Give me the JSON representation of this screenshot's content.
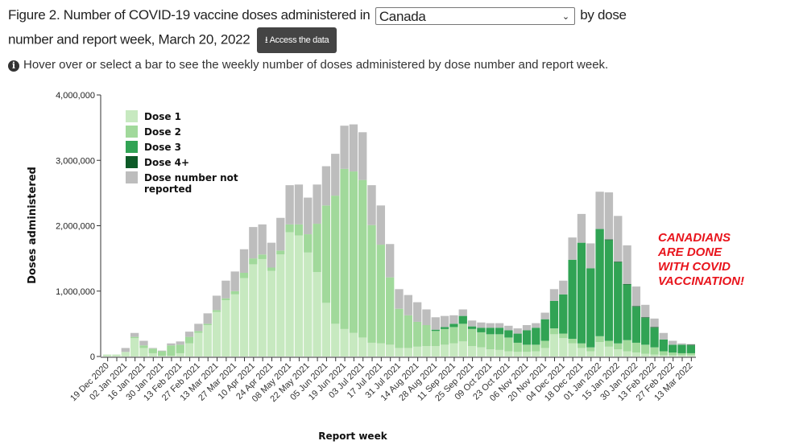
{
  "header": {
    "title_pre": "Figure 2. Number of COVID-19 vaccine doses administered in",
    "region_select": "Canada",
    "title_post": "by dose",
    "title_line2": "number and report week, March 20, 2022",
    "access_button": "Access the data"
  },
  "info_text": "Hover over or select a bar to see the weekly number of doses administered by dose number and report week.",
  "annotation": [
    "CANADIANS",
    "ARE DONE",
    "WITH COVID",
    "VACCINATION!"
  ],
  "chart_data": {
    "type": "bar",
    "stacked": true,
    "xlabel": "Report week",
    "ylabel": "Doses administered",
    "ylim": [
      0,
      4000000
    ],
    "yticks": [
      "0",
      "1,000,000",
      "2,000,000",
      "3,000,000",
      "4,000,000"
    ],
    "tick_labels": [
      "19 Dec 2020",
      "02 Jan 2021",
      "16 Jan 2021",
      "30 Jan 2021",
      "13 Feb 2021",
      "27 Feb 2021",
      "13 Mar 2021",
      "27 Mar 2021",
      "10 Apr 2021",
      "24 Apr 2021",
      "08 May 2021",
      "22 May 2021",
      "05 Jun 2021",
      "19 Jun 2021",
      "03 Jul 2021",
      "17 Jul 2021",
      "31 Jul 2021",
      "14 Aug 2021",
      "28 Aug 2021",
      "11 Sep 2021",
      "25 Sep 2021",
      "09 Oct 2021",
      "23 Oct 2021",
      "06 Nov 2021",
      "20 Nov 2021",
      "04 Dec 2021",
      "18 Dec 2021",
      "01 Jan 2022",
      "15 Jan 2022",
      "30 Jan 2022",
      "13 Feb 2022",
      "27 Feb 2022",
      "13 Mar 2022"
    ],
    "legend": [
      "Dose 1",
      "Dose 2",
      "Dose 3",
      "Dose 4+",
      "Dose number not reported"
    ],
    "legend_position": "top-left",
    "colors": [
      "#c7e9c0",
      "#a1d99b",
      "#31a354",
      "#0d5a27",
      "#bdbdbd"
    ],
    "series_units": "millions of doses",
    "series": [
      {
        "name": "Dose 1",
        "values": [
          0.03,
          0.03,
          0.07,
          0.28,
          0.13,
          0.05,
          0.01,
          0.01,
          0.05,
          0.2,
          0.36,
          0.48,
          0.68,
          0.86,
          0.95,
          1.2,
          1.41,
          1.49,
          1.31,
          1.56,
          1.9,
          1.85,
          1.59,
          1.29,
          0.82,
          0.5,
          0.42,
          0.36,
          0.29,
          0.21,
          0.2,
          0.18,
          0.13,
          0.13,
          0.15,
          0.16,
          0.16,
          0.18,
          0.2,
          0.23,
          0.16,
          0.14,
          0.11,
          0.1,
          0.08,
          0.07,
          0.07,
          0.08,
          0.13,
          0.34,
          0.28,
          0.2,
          0.13,
          0.08,
          0.22,
          0.15,
          0.11,
          0.08,
          0.06,
          0.04,
          0.03,
          0.02,
          0.02,
          0.02,
          0.02
        ]
      },
      {
        "name": "Dose 2",
        "values": [
          0,
          0,
          0,
          0.02,
          0.04,
          0.07,
          0.07,
          0.16,
          0.13,
          0.1,
          0.03,
          0.02,
          0.03,
          0.03,
          0.05,
          0.08,
          0.09,
          0.07,
          0.05,
          0.06,
          0.12,
          0.17,
          0.28,
          0.74,
          1.49,
          1.96,
          2.45,
          2.47,
          2.41,
          1.8,
          1.51,
          1.03,
          0.6,
          0.5,
          0.38,
          0.32,
          0.23,
          0.24,
          0.25,
          0.27,
          0.26,
          0.23,
          0.23,
          0.24,
          0.21,
          0.14,
          0.11,
          0.1,
          0.11,
          0.09,
          0.07,
          0.07,
          0.07,
          0.06,
          0.09,
          0.09,
          0.09,
          0.17,
          0.15,
          0.14,
          0.11,
          0.06,
          0.04,
          0.03,
          0.03
        ]
      },
      {
        "name": "Dose 3",
        "values": [
          0,
          0,
          0,
          0,
          0,
          0,
          0,
          0,
          0,
          0,
          0,
          0,
          0,
          0,
          0,
          0,
          0,
          0,
          0,
          0,
          0,
          0,
          0,
          0,
          0,
          0,
          0,
          0,
          0,
          0,
          0,
          0,
          0,
          0,
          0,
          0,
          0.02,
          0.03,
          0.05,
          0.12,
          0.04,
          0.07,
          0.1,
          0.1,
          0.11,
          0.14,
          0.22,
          0.26,
          0.33,
          0.42,
          0.6,
          1.21,
          1.54,
          1.21,
          1.64,
          1.54,
          1.24,
          0.85,
          0.55,
          0.41,
          0.3,
          0.18,
          0.12,
          0.13,
          0.12
        ]
      },
      {
        "name": "Dose 4+",
        "values": [
          0,
          0,
          0,
          0,
          0,
          0,
          0,
          0,
          0,
          0,
          0,
          0,
          0,
          0,
          0,
          0,
          0,
          0,
          0,
          0,
          0,
          0,
          0,
          0,
          0,
          0,
          0,
          0,
          0,
          0,
          0,
          0,
          0,
          0,
          0,
          0,
          0,
          0,
          0,
          0,
          0,
          0,
          0,
          0,
          0,
          0,
          0,
          0,
          0,
          0,
          0,
          0,
          0,
          0,
          0,
          0.01,
          0.01,
          0.01,
          0.01,
          0.01,
          0.01,
          0,
          0,
          0,
          0.01
        ]
      },
      {
        "name": "Dose number not reported",
        "values": [
          0,
          0,
          0.06,
          0.06,
          0.07,
          0.01,
          0.01,
          0.03,
          0.05,
          0.08,
          0.11,
          0.16,
          0.22,
          0.27,
          0.3,
          0.36,
          0.48,
          0.46,
          0.38,
          0.5,
          0.6,
          0.61,
          0.56,
          0.6,
          0.6,
          0.64,
          0.66,
          0.72,
          0.73,
          0.61,
          0.6,
          0.51,
          0.3,
          0.31,
          0.3,
          0.24,
          0.19,
          0.17,
          0.13,
          0.1,
          0.09,
          0.08,
          0.07,
          0.07,
          0.07,
          0.08,
          0.08,
          0.07,
          0.1,
          0.18,
          0.21,
          0.34,
          0.44,
          0.38,
          0.57,
          0.72,
          0.7,
          0.59,
          0.3,
          0.19,
          0.13,
          0.1,
          0.06,
          0.02,
          0.01
        ]
      }
    ]
  }
}
